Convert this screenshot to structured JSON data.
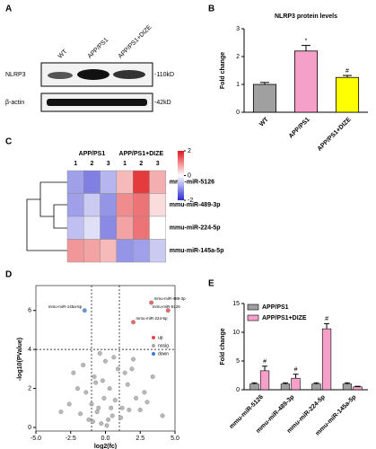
{
  "blot": {
    "panel": "A",
    "lanes": [
      "WT",
      "APP/PS1",
      "APP/PS1+DIZE"
    ],
    "rows": [
      {
        "name": "NLRP3",
        "size": "-110kD"
      },
      {
        "name": "β-actin",
        "size": "-42kD"
      }
    ]
  },
  "chart_data": [
    {
      "type": "bar",
      "panel": "B",
      "title": "NLRP3 protein levels",
      "y_label": "Fold change",
      "categories": [
        "WT",
        "APP/PS1",
        "APP/PS1+DIZE"
      ],
      "values": [
        1.0,
        2.2,
        1.25
      ],
      "errors": [
        0.07,
        0.2,
        0.07
      ],
      "colors": [
        "#a0a0a0",
        "#f4a0c8",
        "#ffff00"
      ],
      "annotations": [
        null,
        "*",
        "#"
      ],
      "ylim": [
        0,
        3
      ],
      "yticks": [
        0,
        1,
        2,
        3
      ]
    },
    {
      "type": "heatmap",
      "panel": "C",
      "groups": [
        "APP/PS1",
        "APP/PS1+DIZE"
      ],
      "columns": [
        "1",
        "2",
        "3",
        "1",
        "2",
        "3"
      ],
      "rows": [
        "mmu-miR-5126",
        "mmu-miR-489-3p",
        "mmu-miR-224-5p",
        "mmu-miR-145a-5p"
      ],
      "values": [
        [
          -0.9,
          -1.2,
          -0.7,
          0.6,
          1.7,
          0.7
        ],
        [
          -0.9,
          -0.5,
          -1.0,
          1.0,
          1.2,
          0.3
        ],
        [
          -0.6,
          -0.3,
          -1.1,
          0.8,
          1.2,
          0.0
        ],
        [
          0.9,
          0.8,
          0.6,
          -1.0,
          -0.9,
          -0.5
        ]
      ],
      "zlim": [
        -2,
        2
      ],
      "zticks": [
        2,
        0,
        -2
      ],
      "colors": [
        "#2b2bd0",
        "#ffffff",
        "#e0181c"
      ]
    },
    {
      "type": "scatter",
      "panel": "D",
      "x_label": "log2(fc)",
      "y_label": "-log10(PValue)",
      "xlim": [
        -5,
        5
      ],
      "xticks": [
        {
          "value": -5,
          "label": "-5.0"
        },
        {
          "value": -2.5,
          "label": "-2.5"
        },
        {
          "value": 0,
          "label": "0.0"
        },
        {
          "value": 2.5,
          "label": "2.5"
        },
        {
          "value": 5,
          "label": "5.0"
        }
      ],
      "ylim": [
        0,
        7
      ],
      "yticks": [
        0,
        2,
        4,
        6
      ],
      "thresholds": {
        "x": [
          -1,
          1
        ],
        "y": 4
      },
      "series": [
        {
          "name": "up",
          "color": "#e0474c",
          "x": [
            4.5,
            3.3,
            2.0
          ],
          "y": [
            6.0,
            6.4,
            5.4
          ],
          "point_labels": [
            "mmu-miR-5126",
            "mmu-miR-489-3p",
            "mmu-miR-224-5p"
          ]
        },
        {
          "name": "nosig",
          "color": "#a8a8a8",
          "x": [
            -0.3,
            0.2,
            -0.6,
            0.5,
            -1.0,
            1.2,
            -1.4,
            1.6,
            -2.0,
            2.2,
            -0.1,
            0.3,
            -0.8,
            0.9,
            -2.6,
            2.8,
            -3.2,
            3.4,
            0.0,
            -0.4,
            0.6,
            -1.6,
            1.9,
            -0.9,
            1.1,
            2.5,
            -2.3,
            0.4,
            -0.2,
            3.0,
            4.1,
            -1.2,
            1.4,
            0.7,
            -0.5,
            2.0,
            -1.8,
            0.1,
            1.7,
            -0.7
          ],
          "y": [
            0.2,
            0.4,
            0.8,
            0.6,
            1.2,
            1.0,
            1.8,
            2.2,
            2.0,
            1.5,
            1.5,
            2.0,
            2.6,
            3.0,
            1.2,
            1.8,
            0.8,
            2.6,
            3.4,
            3.8,
            3.6,
            3.2,
            3.0,
            0.3,
            0.5,
            0.9,
            2.8,
            1.0,
            2.4,
            1.3,
            0.6,
            0.4,
            2.8,
            1.4,
            1.0,
            3.5,
            0.7,
            0.1,
            0.9,
            2.3
          ]
        },
        {
          "name": "down",
          "color": "#3a7fd5",
          "x": [
            -1.5
          ],
          "y": [
            6.0
          ],
          "point_labels": [
            "mmu-miR-145a-5p"
          ]
        }
      ]
    },
    {
      "type": "bar",
      "panel": "E",
      "y_label": "Fold change",
      "categories": [
        "mmu-miR-5126",
        "mmu-miR-489-3p",
        "mmu-miR-224-5p",
        "mmu-miR-145a-5p"
      ],
      "series": [
        {
          "name": "APP/PS1",
          "color": "#a0a0a0",
          "values": [
            1,
            1,
            1,
            1
          ],
          "errors": [
            0.2,
            0.2,
            0.2,
            0.2
          ]
        },
        {
          "name": "APP/PS1+DIZE",
          "color": "#f4a0c8",
          "values": [
            3.3,
            2.0,
            10.6,
            0.5
          ],
          "errors": [
            0.8,
            0.7,
            0.9,
            0.1
          ],
          "annotations": [
            "#",
            "#",
            "#",
            null
          ]
        }
      ],
      "ylim": [
        0,
        15
      ],
      "yticks": [
        0,
        5,
        10,
        15
      ]
    }
  ]
}
